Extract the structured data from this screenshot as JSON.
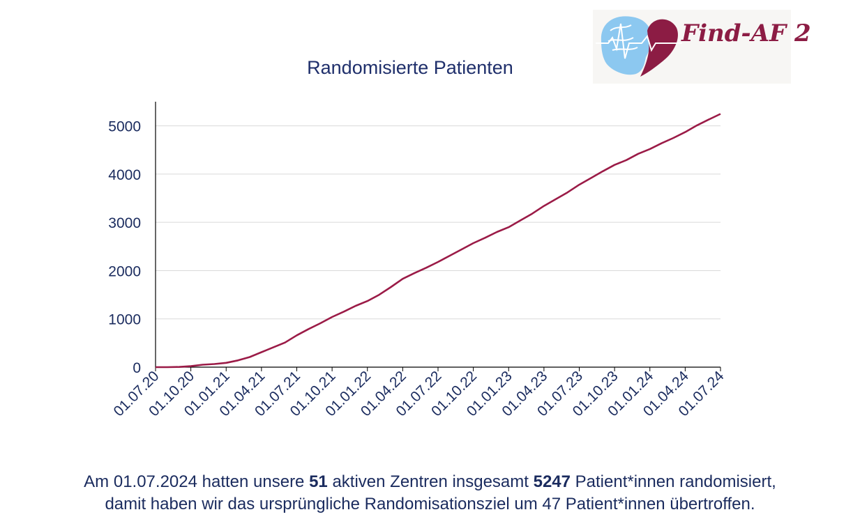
{
  "logo": {
    "text": "Find-AF 2",
    "colors": {
      "brain": "#8cc8f0",
      "heart": "#8c1c44"
    }
  },
  "chart_data": {
    "type": "line",
    "title": "Randomisierte Patienten",
    "xlabel": "",
    "ylabel": "",
    "ylim": [
      0,
      5500
    ],
    "y_ticks": [
      "0",
      "1000",
      "2000",
      "3000",
      "4000",
      "5000"
    ],
    "x_ticks": [
      "01.07.20",
      "01.10.20",
      "01.01.21",
      "01.04.21",
      "01.07.21",
      "01.10.21",
      "01.01.22",
      "01.04.22",
      "01.07.22",
      "01.10.22",
      "01.01.23",
      "01.04.23",
      "01.07.23",
      "01.10.23",
      "01.01.24",
      "01.04.24",
      "01.07.24"
    ],
    "grid": "horizontal",
    "series": [
      {
        "color": "#9b1b47",
        "x": [
          "01.07.20",
          "01.08.20",
          "01.09.20",
          "01.10.20",
          "01.11.20",
          "01.12.20",
          "01.01.21",
          "01.02.21",
          "01.03.21",
          "01.04.21",
          "01.05.21",
          "01.06.21",
          "01.07.21",
          "01.08.21",
          "01.09.21",
          "01.10.21",
          "01.11.21",
          "01.12.21",
          "01.01.22",
          "01.02.22",
          "01.03.22",
          "01.04.22",
          "01.05.22",
          "01.06.22",
          "01.07.22",
          "01.08.22",
          "01.09.22",
          "01.10.22",
          "01.11.22",
          "01.12.22",
          "01.01.23",
          "01.02.23",
          "01.03.23",
          "01.04.23",
          "01.05.23",
          "01.06.23",
          "01.07.23",
          "01.08.23",
          "01.09.23",
          "01.10.23",
          "01.11.23",
          "01.12.23",
          "01.01.24",
          "01.02.24",
          "01.03.24",
          "01.04.24",
          "01.05.24",
          "01.06.24",
          "01.07.24"
        ],
        "values": [
          0,
          0,
          5,
          20,
          50,
          65,
          90,
          140,
          210,
          310,
          410,
          510,
          660,
          790,
          910,
          1040,
          1150,
          1270,
          1370,
          1500,
          1660,
          1830,
          1950,
          2060,
          2180,
          2310,
          2440,
          2570,
          2680,
          2800,
          2900,
          3040,
          3180,
          3340,
          3480,
          3620,
          3780,
          3920,
          4060,
          4190,
          4290,
          4420,
          4520,
          4640,
          4750,
          4870,
          5010,
          5130,
          5247
        ]
      }
    ]
  },
  "caption": {
    "line1_a": "Am 01.07.2024 hatten unsere ",
    "line1_b": "51",
    "line1_c": " aktiven Zentren insgesamt ",
    "line1_d": "5247",
    "line1_e": " Patient*innen randomisiert,",
    "line2": "damit haben wir das ursprüngliche Randomisationsziel um 47 Patient*innen übertroffen."
  }
}
